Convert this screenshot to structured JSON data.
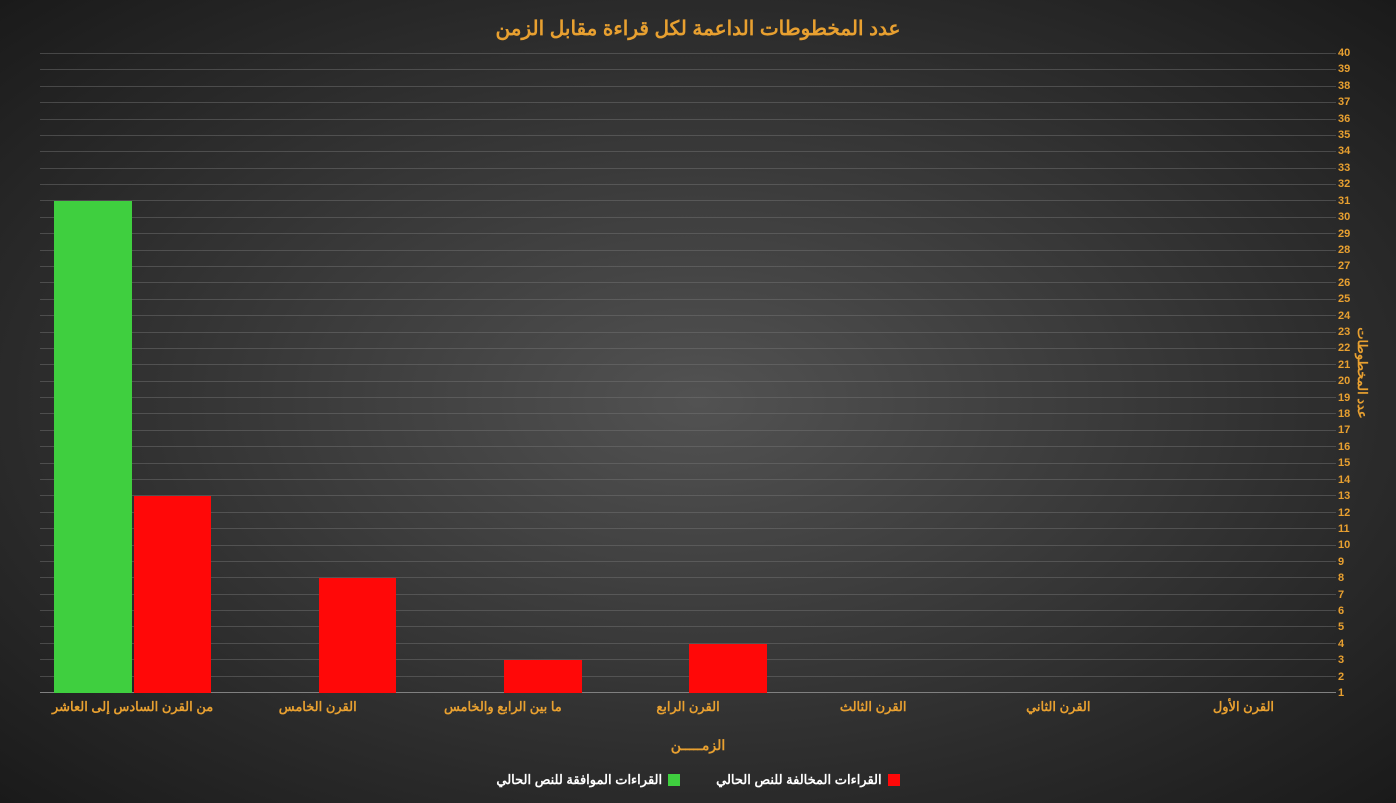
{
  "chart": {
    "type": "bar",
    "title": "عدد المخطوطات الداعمة لكل قراءة مقابل الزمن",
    "title_fontsize": 20,
    "title_color": "#e8a030",
    "x_axis_title": "الزمـــــن",
    "y_axis_title": "عدد المخطوطات",
    "axis_label_color": "#e8a030",
    "axis_label_fontsize": 13,
    "background_gradient_center": "#525252",
    "background_gradient_edge": "#1a1a1a",
    "grid_color": "rgba(120,120,120,0.45)",
    "axis_line_color": "#888888",
    "ylim": [
      1,
      40
    ],
    "ytick_step": 1,
    "tick_color": "#e8a030",
    "tick_fontsize": 11,
    "categories": [
      "القرن الأول",
      "القرن الثاني",
      "القرن الثالث",
      "القرن الرابع",
      "ما بين الرابع والخامس",
      "القرن الخامس",
      "من القرن السادس إلى العاشر"
    ],
    "series": [
      {
        "name": "القراءات المخالفة للنص الحالي",
        "color": "#ff0808",
        "values": [
          0,
          0,
          0,
          4,
          3,
          8,
          13
        ]
      },
      {
        "name": "القراءات الموافقة للنص الحالي",
        "color": "#3fcf3f",
        "values": [
          0,
          0,
          0,
          0,
          0,
          0,
          31
        ]
      }
    ],
    "bar_width_pct": 42,
    "legend_text_color": "#ffffff"
  }
}
